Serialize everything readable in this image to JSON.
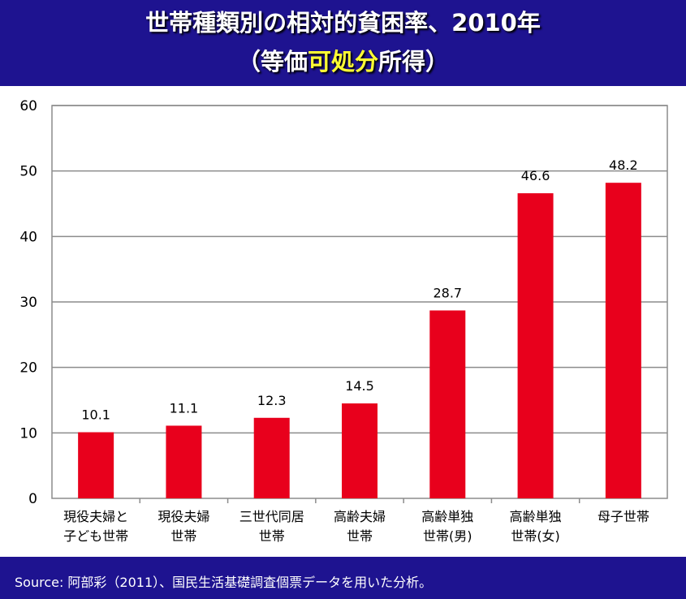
{
  "title": {
    "line1": "世帯種類別の相対的貧困率、2010年",
    "line2_open": "（等価",
    "line2_highlight": "可処分",
    "line2_close": "所得）"
  },
  "source": "Source: 阿部彩（2011）、国民生活基礎調査個票データを用いた分析。",
  "colors": {
    "background": "#1e1390",
    "bar": "#e8001c",
    "highlight": "#ffff33"
  },
  "chart_data": {
    "type": "bar",
    "categories": [
      [
        "現役夫婦と",
        "子ども世帯"
      ],
      [
        "現役夫婦",
        "世帯"
      ],
      [
        "三世代同居",
        "世帯"
      ],
      [
        "高齢夫婦",
        "世帯"
      ],
      [
        "高齢単独",
        "世帯(男)"
      ],
      [
        "高齢単独",
        "世帯(女)"
      ],
      [
        "母子世帯"
      ]
    ],
    "values": [
      10.1,
      11.1,
      12.3,
      14.5,
      28.7,
      46.6,
      48.2
    ],
    "data_labels": [
      "10.1",
      "11.1",
      "12.3",
      "14.5",
      "28.7",
      "46.6",
      "48.2"
    ],
    "ylim": [
      0,
      60
    ],
    "yticks": [
      "0",
      "10",
      "20",
      "30",
      "40",
      "50",
      "60"
    ],
    "grid": true,
    "legend": "none"
  }
}
